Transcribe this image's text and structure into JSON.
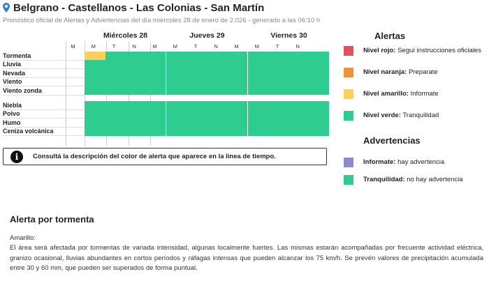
{
  "header": {
    "title": "Belgrano - Castellanos - Las Colonias - San Martín",
    "subtitle": "Pronóstico oficial de Alertas y Advertencias del día miércoles 28 de enero de 2.026 - generado a las 06:10 h"
  },
  "timeline": {
    "days": [
      "Miércoles 28",
      "Jueves 29",
      "Viernes 30"
    ],
    "periods": [
      "M",
      "M",
      "T",
      "N"
    ],
    "rows_group1": [
      "Tormenta",
      "Lluvia",
      "Nevada",
      "Viento",
      "Viento zonda"
    ],
    "rows_group2": [
      "Niebla",
      "Polvo",
      "Humo",
      "Ceniza volcánica"
    ],
    "highlight": {
      "row": "Tormenta",
      "day": "Miércoles 28",
      "period_index": 1,
      "level": "amarillo"
    },
    "colors": {
      "verde": "#2ecc8f",
      "amarillo": "#f9d15a"
    }
  },
  "info": {
    "icon": "info-icon",
    "text": "Consultá la descripción del color de alerta que aparece en la línea de tiempo."
  },
  "legend": {
    "alertas_title": "Alertas",
    "alertas": [
      {
        "bold": "Nivel rojo:",
        "text": " Seguí instrucciones oficiales",
        "color": "#e05260"
      },
      {
        "bold": "Nivel naranja:",
        "text": " Preparate",
        "color": "#f0923a"
      },
      {
        "bold": "Nivel amarillo:",
        "text": " Informate",
        "color": "#f9d15a"
      },
      {
        "bold": "Nivel verde:",
        "text": " Tranquilidad",
        "color": "#2ecc8f"
      }
    ],
    "advertencias_title": "Advertencias",
    "advertencias": [
      {
        "bold": "Informate:",
        "text": " hay advertencia",
        "color": "#8f88c9"
      },
      {
        "bold": "Tranquilidad:",
        "text": " no hay advertencia",
        "color": "#2ecc8f"
      }
    ]
  },
  "alert": {
    "title": "Alerta por tormenta",
    "level": "Amarillo:",
    "description": "El área será afectada por tormentas de variada intensidad, algunas localmente fuertes. Las mismas estarán acompañadas por frecuente actividad eléctrica, granizo ocasional, lluvias abundantes en cortos períodos y ráfagas intensas que pueden alcanzar los 75 km/h. Se prevén valores de precipitación acumulada entre 30 y 60 mm, que pueden ser superados de forma puntual."
  }
}
